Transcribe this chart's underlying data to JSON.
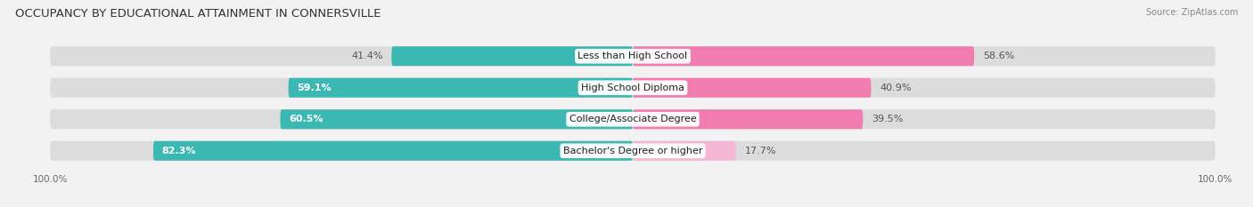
{
  "title": "OCCUPANCY BY EDUCATIONAL ATTAINMENT IN CONNERSVILLE",
  "source": "Source: ZipAtlas.com",
  "categories": [
    "Less than High School",
    "High School Diploma",
    "College/Associate Degree",
    "Bachelor's Degree or higher"
  ],
  "owner_pct": [
    41.4,
    59.1,
    60.5,
    82.3
  ],
  "renter_pct": [
    58.6,
    40.9,
    39.5,
    17.7
  ],
  "owner_color": "#3cb8b2",
  "renter_color": "#f07cb0",
  "renter_color_light": "#f5b8d4",
  "bg_color": "#f2f2f2",
  "bar_bg_color": "#e2e2e2",
  "bar_row_bg": "#dcdcdc",
  "bar_height": 0.62,
  "title_fontsize": 9.5,
  "label_fontsize": 8,
  "tick_fontsize": 7.5,
  "legend_fontsize": 8,
  "source_fontsize": 7
}
